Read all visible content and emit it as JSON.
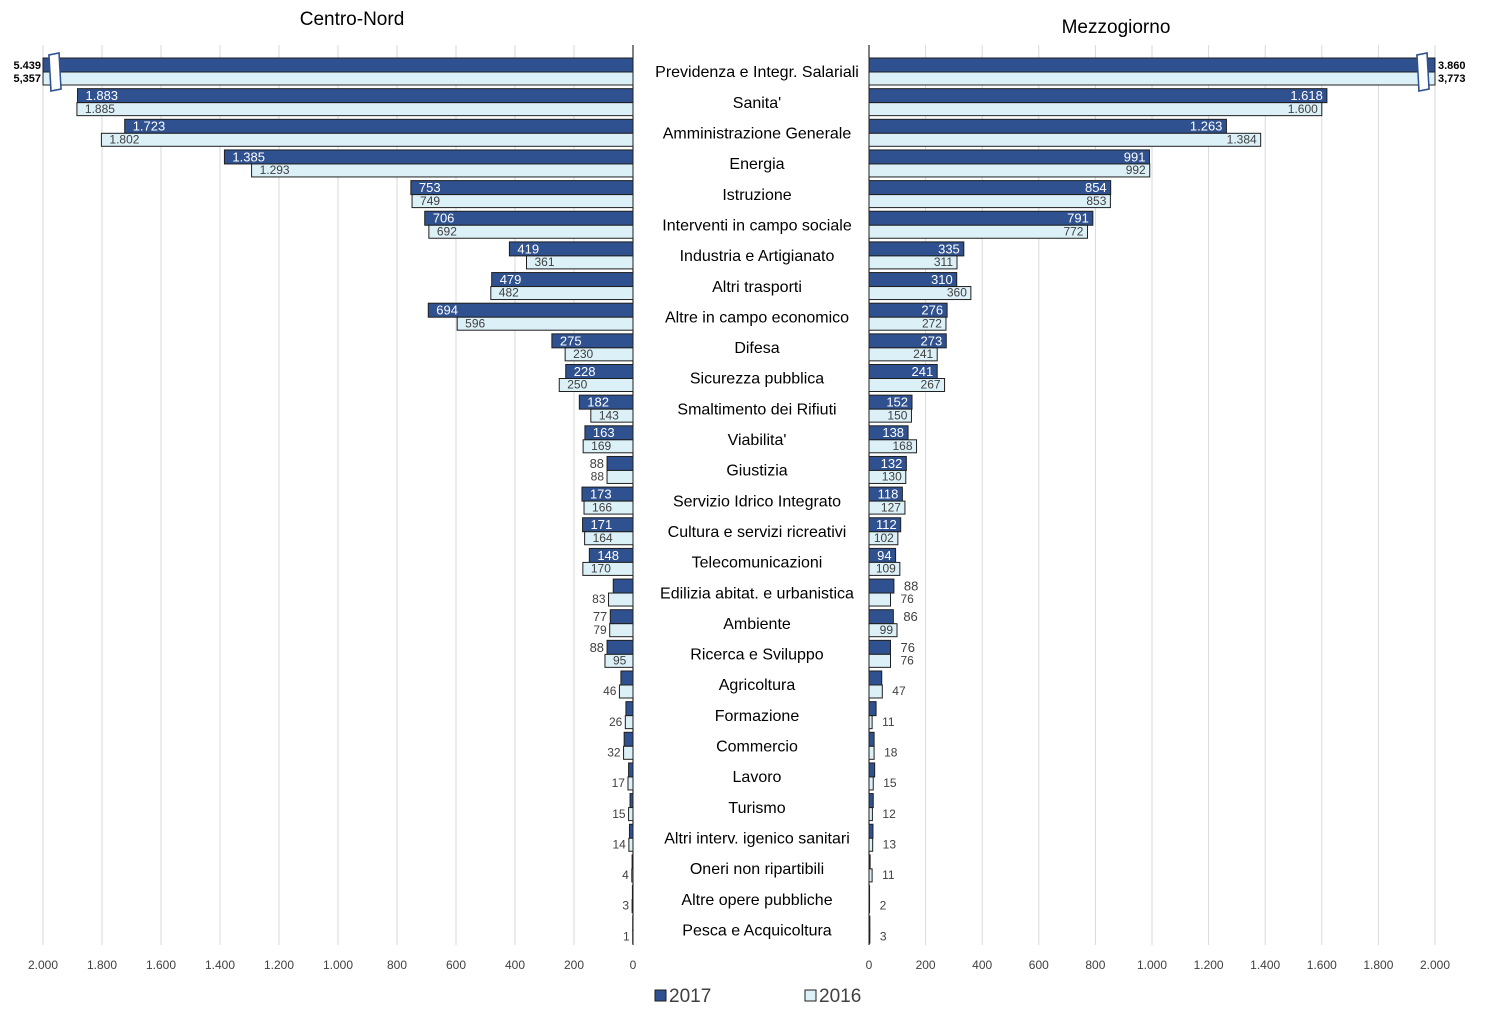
{
  "chart_data": {
    "type": "butterfly",
    "categories": [
      "Previdenza e Integr. Salariali",
      "Sanita'",
      "Amministrazione Generale",
      "Energia",
      "Istruzione",
      "Interventi in campo sociale",
      "Industria e Artigianato",
      "Altri trasporti",
      "Altre in campo economico",
      "Difesa",
      "Sicurezza pubblica",
      "Smaltimento dei Rifiuti",
      "Viabilita'",
      "Giustizia",
      "Servizio Idrico Integrato",
      "Cultura e servizi ricreativi",
      "Telecomunicazioni",
      "Edilizia abitat. e urbanistica",
      "Ambiente",
      "Ricerca e Sviluppo",
      "Agricoltura",
      "Formazione",
      "Commercio",
      "Lavoro",
      "Turismo",
      "Altri interv. igenico sanitari",
      "Oneri non ripartibili",
      "Altre opere pubbliche",
      "Pesca  e Acquicoltura"
    ],
    "legend": [
      {
        "name": "2017",
        "color": "#2f5190"
      },
      {
        "name": "2016",
        "color": "#dcf0f7"
      }
    ],
    "panels": [
      {
        "title": "Centro-Nord",
        "direction": "left",
        "xlim": [
          0,
          2000
        ],
        "xticks": [
          {
            "value": 2000,
            "label": "2.000"
          },
          {
            "value": 1800,
            "label": "1.800"
          },
          {
            "value": 1600,
            "label": "1.600"
          },
          {
            "value": 1400,
            "label": "1.400"
          },
          {
            "value": 1200,
            "label": "1.200"
          },
          {
            "value": 1000,
            "label": "1.000"
          },
          800,
          600,
          400,
          200,
          0
        ],
        "series": [
          {
            "values": [
              5439,
              1883,
              1723,
              1385,
              753,
              706,
              419,
              479,
              694,
              275,
              228,
              182,
              163,
              88,
              173,
              171,
              148,
              67,
              77,
              88,
              41,
              24,
              30,
              15,
              10,
              12,
              3,
              2,
              1
            ],
            "value_labels": [
              "5.439",
              "1.883",
              "1.723",
              "1.385",
              "753",
              "706",
              "419",
              "479",
              "694",
              "275",
              "228",
              "182",
              "163",
              "88",
              "173",
              "171",
              "148",
              null,
              "77",
              "88",
              null,
              null,
              null,
              null,
              null,
              null,
              null,
              null,
              null
            ]
          },
          {
            "values": [
              5357,
              1885,
              1802,
              1293,
              749,
              692,
              361,
              482,
              596,
              230,
              250,
              143,
              169,
              88,
              166,
              164,
              170,
              83,
              79,
              95,
              46,
              26,
              32,
              17,
              15,
              14,
              4,
              3,
              1
            ],
            "value_labels": [
              "5,357",
              "1.885",
              "1.802",
              "1.293",
              "749",
              "692",
              "361",
              "482",
              "596",
              "230",
              "250",
              "143",
              "169",
              "88",
              "166",
              "164",
              "170",
              "83",
              "79",
              "95",
              "46",
              "26",
              "32",
              "17",
              "15",
              "14",
              "4",
              "3",
              "1"
            ]
          }
        ]
      },
      {
        "title": "Mezzogiorno",
        "direction": "right",
        "xlim": [
          0,
          2000
        ],
        "xticks": [
          0,
          200,
          400,
          600,
          800,
          {
            "value": 1000,
            "label": "1.000"
          },
          {
            "value": 1200,
            "label": "1.200"
          },
          {
            "value": 1400,
            "label": "1.400"
          },
          {
            "value": 1600,
            "label": "1.600"
          },
          {
            "value": 1800,
            "label": "1.800"
          },
          {
            "value": 2000,
            "label": "2.000"
          }
        ],
        "series": [
          {
            "values": [
              3860,
              1618,
              1263,
              991,
              854,
              791,
              335,
              310,
              276,
              273,
              241,
              152,
              138,
              132,
              118,
              112,
              94,
              88,
              86,
              76,
              45,
              25,
              18,
              20,
              15,
              14,
              4,
              2,
              3
            ],
            "value_labels": [
              "3.860",
              "1.618",
              "1.263",
              "991",
              "854",
              "791",
              "335",
              "310",
              "276",
              "273",
              "241",
              "152",
              "138",
              "132",
              "118",
              "112",
              "94",
              "88",
              "86",
              "76",
              null,
              null,
              null,
              null,
              null,
              null,
              null,
              null,
              null
            ]
          },
          {
            "values": [
              3773,
              1600,
              1384,
              992,
              853,
              772,
              311,
              360,
              272,
              241,
              267,
              150,
              168,
              130,
              127,
              102,
              109,
              76,
              99,
              76,
              47,
              11,
              18,
              15,
              12,
              13,
              11,
              2,
              3
            ],
            "value_labels": [
              "3,773",
              "1.600",
              "1.384",
              "992",
              "853",
              "772",
              "311",
              "360",
              "272",
              "241",
              "267",
              "150",
              "168",
              "130",
              "127",
              "102",
              "109",
              "76",
              "99",
              "76",
              "47",
              "11",
              "18",
              "15",
              "12",
              "13",
              "11",
              "2",
              "3"
            ]
          }
        ]
      }
    ]
  }
}
